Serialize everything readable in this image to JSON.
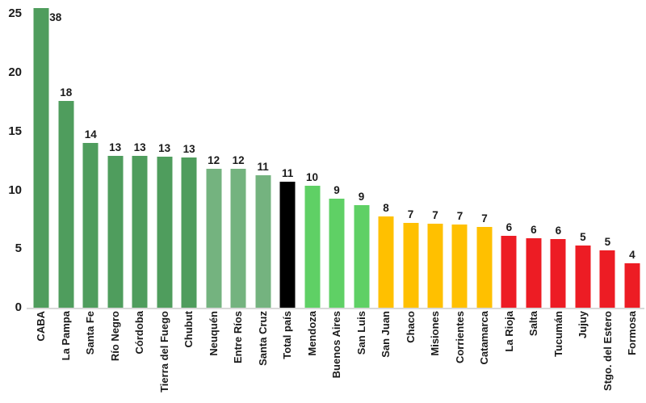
{
  "chart": {
    "background": "#ffffff",
    "axis_line_color": "#d9d9d9",
    "text_color": "#1a1a1a"
  },
  "chart_data": {
    "type": "bar",
    "title": "",
    "xlabel": "",
    "ylabel": "",
    "ylim": [
      0,
      25
    ],
    "yticks": [
      0,
      5,
      10,
      15,
      20,
      25
    ],
    "grid": false,
    "legend": "none",
    "x_label_rotation": 90,
    "clipping_note": "CABA value 38 exceeds axis max 25; bar clipped at plot top, label shown beside bar top",
    "palette": {
      "dark_green": "#4f9d5d",
      "medium_green": "#74b37f",
      "black": "#000000",
      "light_green": "#5fd065",
      "yellow": "#ffc000",
      "red": "#ed1c24"
    },
    "bars": [
      {
        "category": "CABA",
        "value": 38,
        "plotted": 25.5,
        "group": "dark_green",
        "clipped": true
      },
      {
        "category": "La Pampa",
        "value": 18,
        "plotted": 17.6,
        "group": "dark_green"
      },
      {
        "category": "Santa Fe",
        "value": 14,
        "plotted": 14.0,
        "group": "dark_green"
      },
      {
        "category": "Río Negro",
        "value": 13,
        "plotted": 12.95,
        "group": "dark_green"
      },
      {
        "category": "Córdoba",
        "value": 13,
        "plotted": 12.9,
        "group": "dark_green"
      },
      {
        "category": "Tierra del Fuego",
        "value": 13,
        "plotted": 12.85,
        "group": "dark_green"
      },
      {
        "category": "Chubut",
        "value": 13,
        "plotted": 12.8,
        "group": "dark_green"
      },
      {
        "category": "Neuquén",
        "value": 12,
        "plotted": 11.85,
        "group": "medium_green"
      },
      {
        "category": "Entre Ríos",
        "value": 12,
        "plotted": 11.8,
        "group": "medium_green"
      },
      {
        "category": "Santa Cruz",
        "value": 11,
        "plotted": 11.3,
        "group": "medium_green"
      },
      {
        "category": "Total país",
        "value": 11,
        "plotted": 10.75,
        "group": "black"
      },
      {
        "category": "Mendoza",
        "value": 10,
        "plotted": 10.4,
        "group": "light_green"
      },
      {
        "category": "Buenos Aires",
        "value": 9,
        "plotted": 9.25,
        "group": "light_green"
      },
      {
        "category": "San Luis",
        "value": 9,
        "plotted": 8.75,
        "group": "light_green"
      },
      {
        "category": "San Juan",
        "value": 8,
        "plotted": 7.75,
        "group": "yellow"
      },
      {
        "category": "Chaco",
        "value": 7,
        "plotted": 7.2,
        "group": "yellow"
      },
      {
        "category": "Misiones",
        "value": 7,
        "plotted": 7.15,
        "group": "yellow"
      },
      {
        "category": "Corrientes",
        "value": 7,
        "plotted": 7.1,
        "group": "yellow"
      },
      {
        "category": "Catamarca",
        "value": 7,
        "plotted": 6.85,
        "group": "yellow"
      },
      {
        "category": "La Rioja",
        "value": 6,
        "plotted": 6.1,
        "group": "red"
      },
      {
        "category": "Salta",
        "value": 6,
        "plotted": 5.9,
        "group": "red"
      },
      {
        "category": "Tucumán",
        "value": 6,
        "plotted": 5.85,
        "group": "red"
      },
      {
        "category": "Jujuy",
        "value": 5,
        "plotted": 5.3,
        "group": "red"
      },
      {
        "category": "Stgo. del Estero",
        "value": 5,
        "plotted": 4.9,
        "group": "red"
      },
      {
        "category": "Formosa",
        "value": 4,
        "plotted": 3.8,
        "group": "red"
      }
    ]
  }
}
